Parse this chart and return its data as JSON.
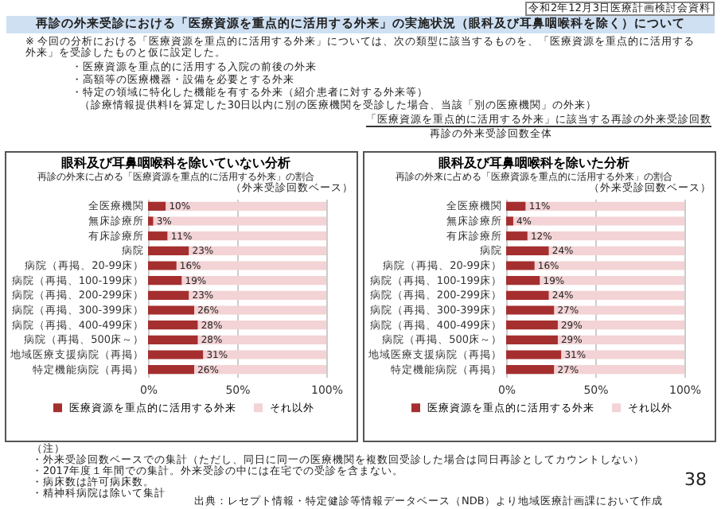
{
  "chart_data": [
    {
      "type": "bar",
      "orientation": "horizontal",
      "stacked": true,
      "title": "眼科及び耳鼻咽喉科を除いていない分析",
      "subtitle": "再診の外来に占める「医療資源を重点的に活用する外来」の割合",
      "categories": [
        "全医療機関",
        "無床診療所",
        "有床診療所",
        "病院",
        "病院（再掲、20-99床）",
        "病院（再掲、100-199床）",
        "病院（再掲、200-299床）",
        "病院（再掲、300-399床）",
        "病院（再掲、400-499床）",
        "病院（再掲、500床～）",
        "地域医療支援病院（再掲）",
        "特定機能病院（再掲）"
      ],
      "series": [
        {
          "name": "医療資源を重点的に活用する外来",
          "color": "#a52f2f",
          "values": [
            10,
            3,
            11,
            23,
            16,
            19,
            23,
            26,
            28,
            28,
            31,
            26
          ],
          "value_labels": [
            "10%",
            "3%",
            "11%",
            "23%",
            "16%",
            "19%",
            "23%",
            "26%",
            "28%",
            "28%",
            "31%",
            "26%"
          ]
        },
        {
          "name": "それ以外",
          "color": "#f3d3d5",
          "values": [
            90,
            97,
            89,
            77,
            84,
            81,
            77,
            74,
            72,
            72,
            69,
            74
          ]
        }
      ],
      "xlim": [
        0,
        100
      ],
      "xticks": [
        {
          "value": 0,
          "label": "0%"
        },
        {
          "value": 50,
          "label": "50%"
        },
        {
          "value": 100,
          "label": "100%"
        }
      ],
      "grid": "x",
      "legend": "bottom",
      "annotations": [
        "令和2年12月3日医療計画検討会資料",
        "再診の外来受診における「医療資源を重点的に活用する外来」の実施状況（眼科及び耳鼻咽喉科を除く）について",
        "※ 今回の分析における「医療資源を重点的に活用する外来」については、次の類型に該当するものを、「医療資源を重点的に活用する外来」を受診したものと仮に設定した。",
        "・医療資源を重点的に活用する入院の前後の外来",
        "・高額等の医療機器・設備を必要とする外来",
        "・特定の領域に特化した機能を有する外来（紹介患者に対する外来等）",
        "（診療情報提供料Ⅰを算定した30日以内に別の医療機関を受診した場合、当該「別の医療機関」の外来）",
        "「医療資源を重点的に活用する外来」に該当する再診の外来受診回数",
        "再診の外来受診回数全体",
        "（外来受診回数ベース）"
      ]
    },
    {
      "type": "bar",
      "orientation": "horizontal",
      "stacked": true,
      "title": "眼科及び耳鼻咽喉科を除いた分析",
      "subtitle": "再診の外来に占める「医療資源を重点的に活用する外来」の割合",
      "categories": [
        "全医療機関",
        "無床診療所",
        "有床診療所",
        "病院",
        "病院（再掲、20-99床）",
        "病院（再掲、100-199床）",
        "病院（再掲、200-299床）",
        "病院（再掲、300-399床）",
        "病院（再掲、400-499床）",
        "病院（再掲、500床～）",
        "地域医療支援病院（再掲）",
        "特定機能病院（再掲）"
      ],
      "series": [
        {
          "name": "医療資源を重点的に活用する外来",
          "color": "#a52f2f",
          "values": [
            11,
            4,
            12,
            24,
            16,
            19,
            24,
            27,
            29,
            29,
            31,
            27
          ],
          "value_labels": [
            "11%",
            "4%",
            "12%",
            "24%",
            "16%",
            "19%",
            "24%",
            "27%",
            "29%",
            "29%",
            "31%",
            "27%"
          ]
        },
        {
          "name": "それ以外",
          "color": "#f3d3d5",
          "values": [
            89,
            96,
            88,
            76,
            84,
            81,
            76,
            73,
            71,
            71,
            69,
            73
          ]
        }
      ],
      "xlim": [
        0,
        100
      ],
      "xticks": [
        {
          "value": 0,
          "label": "0%"
        },
        {
          "value": 50,
          "label": "50%"
        },
        {
          "value": 100,
          "label": "100%"
        }
      ],
      "grid": "x",
      "legend": "bottom",
      "annotations": [
        "（注）",
        "・外来受診回数ベースでの集計（ただし、同日に同一の医療機関を複数回受診した場合は同日再診としてカウントしない）",
        "・2017年度１年間での集計。外来受診の中には在宅での受診を含まない。",
        "・病床数は許可病床数。",
        "・精神科病院は除いて集計",
        "出典：レセプト情報・特定健診等情報データベース（NDB）より地域医療計画課において作成",
        "38",
        "（外来受診回数ベース）"
      ]
    }
  ]
}
